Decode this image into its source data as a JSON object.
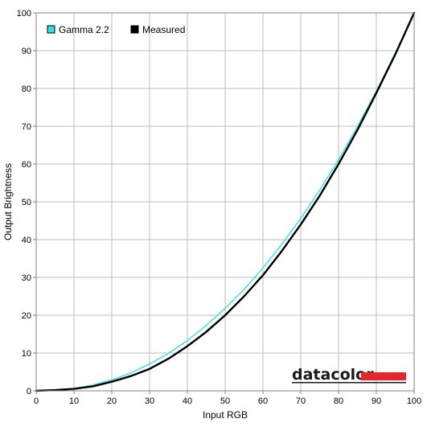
{
  "chart_data": {
    "type": "line",
    "xlabel": "Input RGB",
    "ylabel": "Output Brightness",
    "xlim": [
      0,
      100
    ],
    "ylim": [
      0,
      100
    ],
    "x_ticks": [
      0,
      10,
      20,
      30,
      40,
      50,
      60,
      70,
      80,
      90,
      100
    ],
    "y_ticks": [
      0,
      10,
      20,
      30,
      40,
      50,
      60,
      70,
      80,
      90,
      100
    ],
    "grid": true,
    "legend_position": "top-left",
    "x": [
      0,
      5,
      10,
      15,
      20,
      25,
      30,
      35,
      40,
      45,
      50,
      55,
      60,
      65,
      70,
      75,
      80,
      85,
      90,
      95,
      100
    ],
    "series": [
      {
        "name": "Gamma 2.2",
        "color": "#33e0e8",
        "values": [
          0,
          0.14,
          0.63,
          1.5,
          2.9,
          4.7,
          7.1,
          9.9,
          13.3,
          17.3,
          21.8,
          26.8,
          32.5,
          38.8,
          45.6,
          53.1,
          61.2,
          69.9,
          79.3,
          89.3,
          100
        ]
      },
      {
        "name": "Measured",
        "color": "#000000",
        "values": [
          0,
          0.2,
          0.5,
          1.2,
          2.4,
          3.9,
          5.8,
          8.5,
          11.8,
          15.6,
          20.0,
          25.0,
          30.6,
          37.0,
          44.0,
          51.6,
          60.0,
          69.0,
          78.8,
          89.0,
          100
        ]
      }
    ]
  },
  "logo": {
    "text": "datacolor",
    "bar_color": "#e8252a"
  }
}
